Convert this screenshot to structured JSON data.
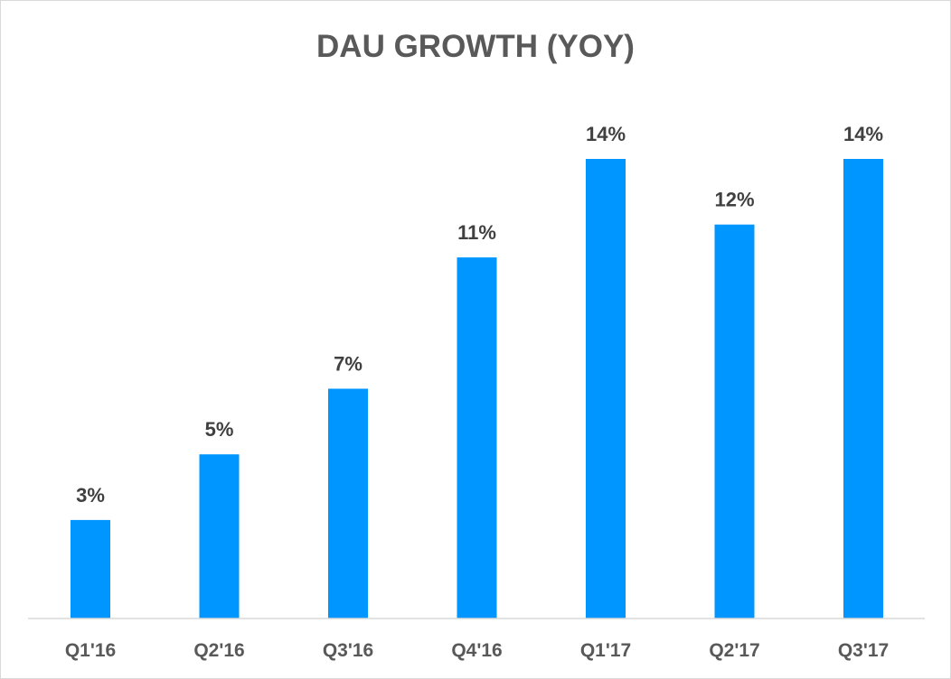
{
  "chart_data": {
    "type": "bar",
    "title": "DAU GROWTH (YOY)",
    "categories": [
      "Q1'16",
      "Q2'16",
      "Q3'16",
      "Q4'16",
      "Q1'17",
      "Q2'17",
      "Q3'17"
    ],
    "values": [
      3,
      5,
      7,
      11,
      14,
      12,
      14
    ],
    "data_labels": [
      "3%",
      "5%",
      "7%",
      "11%",
      "14%",
      "12%",
      "14%"
    ],
    "value_unit": "%",
    "ylim": [
      0,
      14
    ],
    "grid": false,
    "legend": "none",
    "colors": {
      "bar": "#0096FF",
      "title": "#595959",
      "data_label": "#404040",
      "tick_label": "#595959",
      "axis": "#d9d9d9"
    }
  }
}
